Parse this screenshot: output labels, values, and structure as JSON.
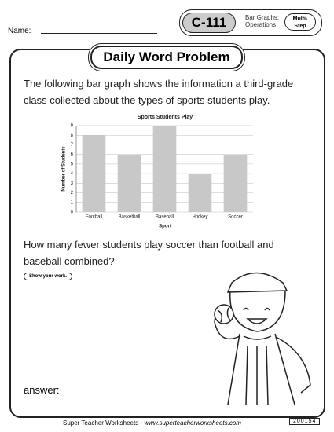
{
  "header": {
    "code": "C-111",
    "topic": [
      "Bar Graphs;",
      "Operations"
    ],
    "level": [
      "Multi-",
      "Step"
    ],
    "name_label": "Name:"
  },
  "title": "Daily Word Problem",
  "intro": "The following bar graph shows the information a third-grade class collected about the types of sports students play.",
  "chart_data": {
    "type": "bar",
    "title": "Sports Students Play",
    "x_label": "Sport",
    "y_label": "Number of Students",
    "categories": [
      "Football",
      "Basketball",
      "Baseball",
      "Hockey",
      "Soccer"
    ],
    "values": [
      8,
      6,
      9,
      4,
      6
    ],
    "color": "#c8c8c8",
    "ylim": [
      0,
      9
    ],
    "yticks": [
      0,
      1,
      2,
      3,
      4,
      5,
      6,
      7,
      8,
      9
    ],
    "grid": true
  },
  "question": "How many fewer students play soccer than football and baseball combined?",
  "work_button": "Show your work.",
  "answer_label": "answer:",
  "footer": {
    "site": "Super Teacher Worksheets -",
    "url": "www.superteacherworksheets.com",
    "id": "200154"
  }
}
